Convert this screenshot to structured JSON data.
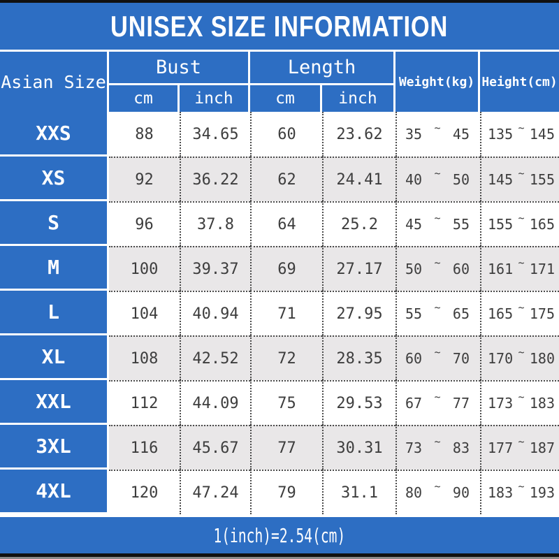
{
  "title": "UNISEX SIZE INFORMATION",
  "footer_note": "1(inch)=2.54(cm)",
  "tilde": "~",
  "colors": {
    "blue": "#2d6ec3",
    "alt_row": "#e9e7e8",
    "text": "#3d3d3d"
  },
  "header": {
    "size_col": "Asian Size",
    "bust": {
      "label": "Bust",
      "cm": "cm",
      "inch": "inch"
    },
    "length": {
      "label": "Length",
      "cm": "cm",
      "inch": "inch"
    },
    "weight": "Weight(kg)",
    "height": "Height(cm)"
  },
  "rows": [
    {
      "size": "XXS",
      "bust_cm": "88",
      "bust_in": "34.65",
      "len_cm": "60",
      "len_in": "23.62",
      "wt_lo": "35",
      "wt_hi": "45",
      "ht_lo": "135",
      "ht_hi": "145"
    },
    {
      "size": "XS",
      "bust_cm": "92",
      "bust_in": "36.22",
      "len_cm": "62",
      "len_in": "24.41",
      "wt_lo": "40",
      "wt_hi": "50",
      "ht_lo": "145",
      "ht_hi": "155"
    },
    {
      "size": "S",
      "bust_cm": "96",
      "bust_in": "37.8",
      "len_cm": "64",
      "len_in": "25.2",
      "wt_lo": "45",
      "wt_hi": "55",
      "ht_lo": "155",
      "ht_hi": "165"
    },
    {
      "size": "M",
      "bust_cm": "100",
      "bust_in": "39.37",
      "len_cm": "69",
      "len_in": "27.17",
      "wt_lo": "50",
      "wt_hi": "60",
      "ht_lo": "161",
      "ht_hi": "171"
    },
    {
      "size": "L",
      "bust_cm": "104",
      "bust_in": "40.94",
      "len_cm": "71",
      "len_in": "27.95",
      "wt_lo": "55",
      "wt_hi": "65",
      "ht_lo": "165",
      "ht_hi": "175"
    },
    {
      "size": "XL",
      "bust_cm": "108",
      "bust_in": "42.52",
      "len_cm": "72",
      "len_in": "28.35",
      "wt_lo": "60",
      "wt_hi": "70",
      "ht_lo": "170",
      "ht_hi": "180"
    },
    {
      "size": "XXL",
      "bust_cm": "112",
      "bust_in": "44.09",
      "len_cm": "75",
      "len_in": "29.53",
      "wt_lo": "67",
      "wt_hi": "77",
      "ht_lo": "173",
      "ht_hi": "183"
    },
    {
      "size": "3XL",
      "bust_cm": "116",
      "bust_in": "45.67",
      "len_cm": "77",
      "len_in": "30.31",
      "wt_lo": "73",
      "wt_hi": "83",
      "ht_lo": "177",
      "ht_hi": "187"
    },
    {
      "size": "4XL",
      "bust_cm": "120",
      "bust_in": "47.24",
      "len_cm": "79",
      "len_in": "31.1",
      "wt_lo": "80",
      "wt_hi": "90",
      "ht_lo": "183",
      "ht_hi": "193"
    }
  ],
  "chart_data": {
    "type": "table",
    "title": "UNISEX SIZE INFORMATION",
    "columns": [
      "Asian Size",
      "Bust cm",
      "Bust inch",
      "Length cm",
      "Length inch",
      "Weight(kg)",
      "Height(cm)"
    ],
    "rows": [
      [
        "XXS",
        "88",
        "34.65",
        "60",
        "23.62",
        "35~45",
        "135~145"
      ],
      [
        "XS",
        "92",
        "36.22",
        "62",
        "24.41",
        "40~50",
        "145~155"
      ],
      [
        "S",
        "96",
        "37.8",
        "64",
        "25.2",
        "45~55",
        "155~165"
      ],
      [
        "M",
        "100",
        "39.37",
        "69",
        "27.17",
        "50~60",
        "161~171"
      ],
      [
        "L",
        "104",
        "40.94",
        "71",
        "27.95",
        "55~65",
        "165~175"
      ],
      [
        "XL",
        "108",
        "42.52",
        "72",
        "28.35",
        "60~70",
        "170~180"
      ],
      [
        "XXL",
        "112",
        "44.09",
        "75",
        "29.53",
        "67~77",
        "173~183"
      ],
      [
        "3XL",
        "116",
        "45.67",
        "77",
        "30.31",
        "73~83",
        "177~187"
      ],
      [
        "4XL",
        "120",
        "47.24",
        "79",
        "31.1",
        "80~90",
        "183~193"
      ]
    ],
    "footnote": "1(inch)=2.54(cm)"
  }
}
